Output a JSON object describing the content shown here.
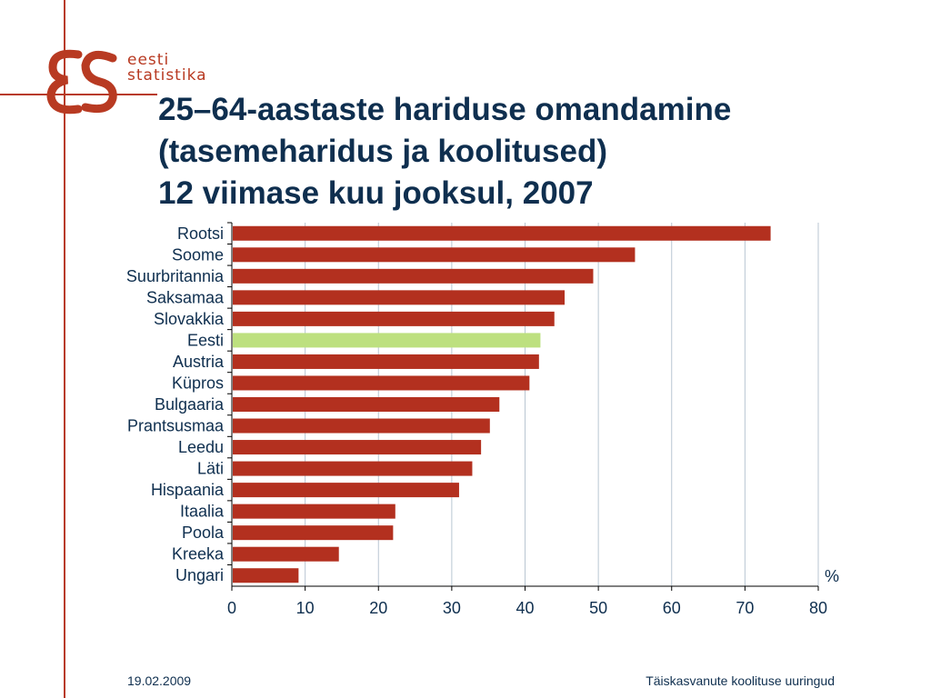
{
  "logo": {
    "line1": "eesti",
    "line2": "statistika",
    "mark": "es-monogram-icon"
  },
  "title": {
    "line1": "25–64-aastaste hariduse omandamine",
    "line2": "(tasemeharidus ja koolitused)",
    "line3": "12 viimase kuu jooksul, 2007"
  },
  "footer": {
    "date": "19.02.2009",
    "source": "Täiskasvanute koolituse uuringud"
  },
  "colors": {
    "bar": "#b3301f",
    "highlight": "#bde07f",
    "title": "#0f2f4f",
    "accent": "#b83a22"
  },
  "chart_data": {
    "type": "bar",
    "orientation": "horizontal",
    "categories": [
      "Rootsi",
      "Soome",
      "Suurbritannia",
      "Saksamaa",
      "Slovakkia",
      "Eesti",
      "Austria",
      "Küpros",
      "Bulgaaria",
      "Prantsusmaa",
      "Leedu",
      "Läti",
      "Hispaania",
      "Itaalia",
      "Poola",
      "Kreeka",
      "Ungari"
    ],
    "values": [
      73.5,
      55.0,
      49.3,
      45.4,
      44.0,
      42.1,
      41.9,
      40.6,
      36.5,
      35.2,
      34.0,
      32.8,
      31.0,
      22.3,
      22.0,
      14.6,
      9.1
    ],
    "highlight": "Eesti",
    "xlim": [
      0,
      80
    ],
    "xticks": [
      0,
      10,
      20,
      30,
      40,
      50,
      60,
      70,
      80
    ],
    "unit_label": "%",
    "grid": "vertical"
  }
}
